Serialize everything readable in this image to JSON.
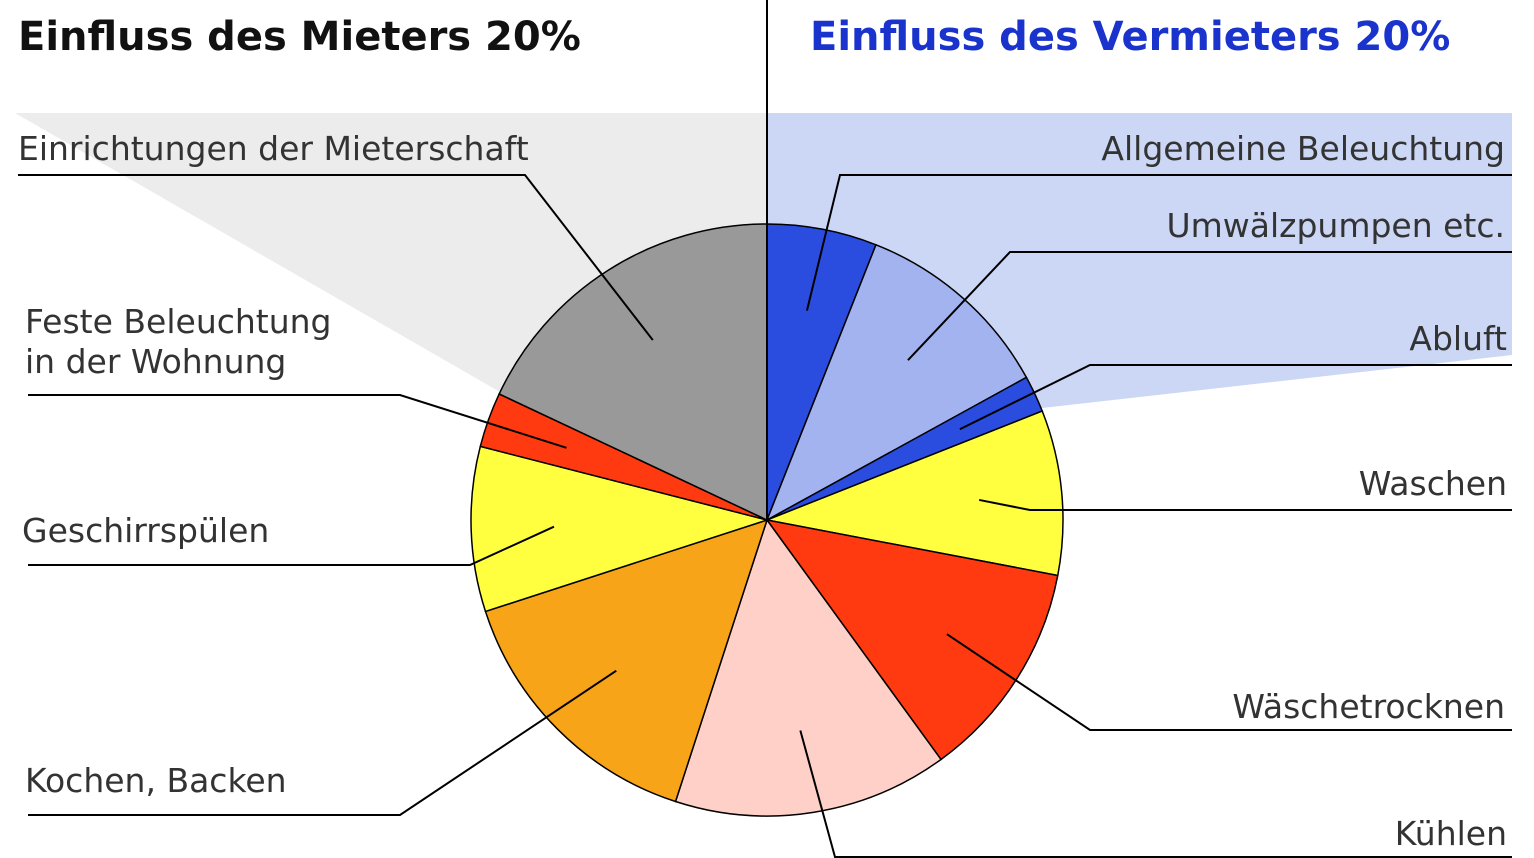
{
  "chart_data": {
    "type": "pie",
    "annotations": [
      "Einfluss des Mieters 20%",
      "Einfluss des Vermieters 20%"
    ],
    "categories": [
      "Allgemeine Beleuchtung",
      "Umwälzpumpen etc.",
      "Abluft",
      "Waschen",
      "Wäschetrocknen",
      "Kühlen",
      "Kochen, Backen",
      "Geschirrspülen",
      "Feste Beleuchtung\nin der Wohnung",
      "Einrichtungen der Mieterschaft"
    ],
    "values": [
      6,
      11,
      2,
      9,
      12,
      15,
      15,
      9,
      3,
      18
    ],
    "colors": [
      "#2a4de0",
      "#a3b3f0",
      "#2a4de0",
      "#ffff40",
      "#ff3a10",
      "#ffd0c8",
      "#f8a418",
      "#ffff40",
      "#ff3a10",
      "#999999"
    ]
  }
}
